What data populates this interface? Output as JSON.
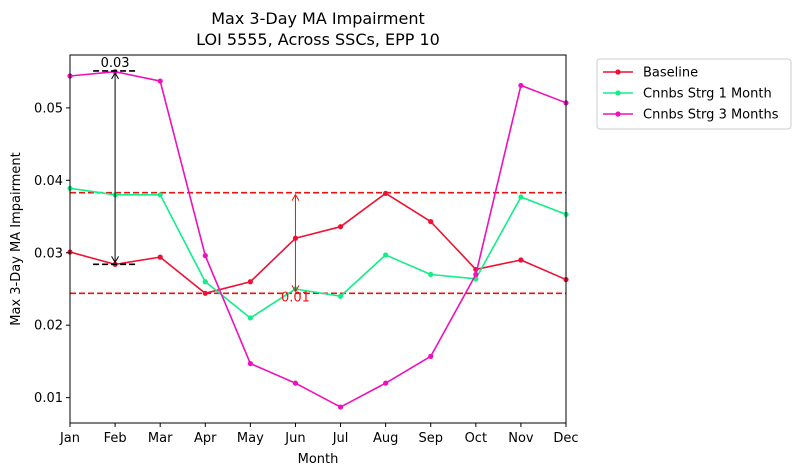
{
  "chart_data": {
    "type": "line",
    "title": "Max 3-Day MA Impairment",
    "subtitle": "LOI 5555, Across SSCs, EPP 10",
    "xlabel": "Month",
    "ylabel": "Max 3-Day MA Impairment",
    "categories": [
      "Jan",
      "Feb",
      "Mar",
      "Apr",
      "May",
      "Jun",
      "Jul",
      "Aug",
      "Sep",
      "Oct",
      "Nov",
      "Dec"
    ],
    "ylim": [
      0.0065,
      0.0573
    ],
    "yticks": [
      0.01,
      0.02,
      0.03,
      0.04,
      0.05
    ],
    "ytick_labels": [
      "0.01",
      "0.02",
      "0.03",
      "0.04",
      "0.05"
    ],
    "grid": false,
    "legend_position": "outside-top-right",
    "series": [
      {
        "name": "Baseline",
        "color": "#ee1133",
        "values": [
          0.0301,
          0.0284,
          0.0294,
          0.0244,
          0.026,
          0.032,
          0.0336,
          0.0382,
          0.0343,
          0.0277,
          0.029,
          0.0263
        ]
      },
      {
        "name": "Cnnbs Strg 1 Month",
        "color": "#11ee88",
        "values": [
          0.0389,
          0.038,
          0.038,
          0.026,
          0.021,
          0.025,
          0.024,
          0.0297,
          0.027,
          0.0264,
          0.0377,
          0.0353
        ]
      },
      {
        "name": "Cnnbs Strg 3 Months",
        "color": "#ee11bb",
        "values": [
          0.0544,
          0.055,
          0.0537,
          0.0296,
          0.0147,
          0.012,
          0.0087,
          0.012,
          0.0157,
          0.027,
          0.0531,
          0.0507
        ]
      }
    ],
    "reference_lines": [
      {
        "y": 0.0383,
        "color": "#ee1111",
        "style": "dashed"
      },
      {
        "y": 0.0244,
        "color": "#ee1111",
        "style": "dashed"
      }
    ],
    "annotations": [
      {
        "label": "0.03",
        "x": "Feb",
        "y_top": 0.0551,
        "y_bottom": 0.0284,
        "color": "#000000"
      },
      {
        "label": "0.01",
        "x": "Jun",
        "y_top": 0.0383,
        "y_bottom": 0.0244,
        "color": "#ee1111"
      }
    ]
  }
}
